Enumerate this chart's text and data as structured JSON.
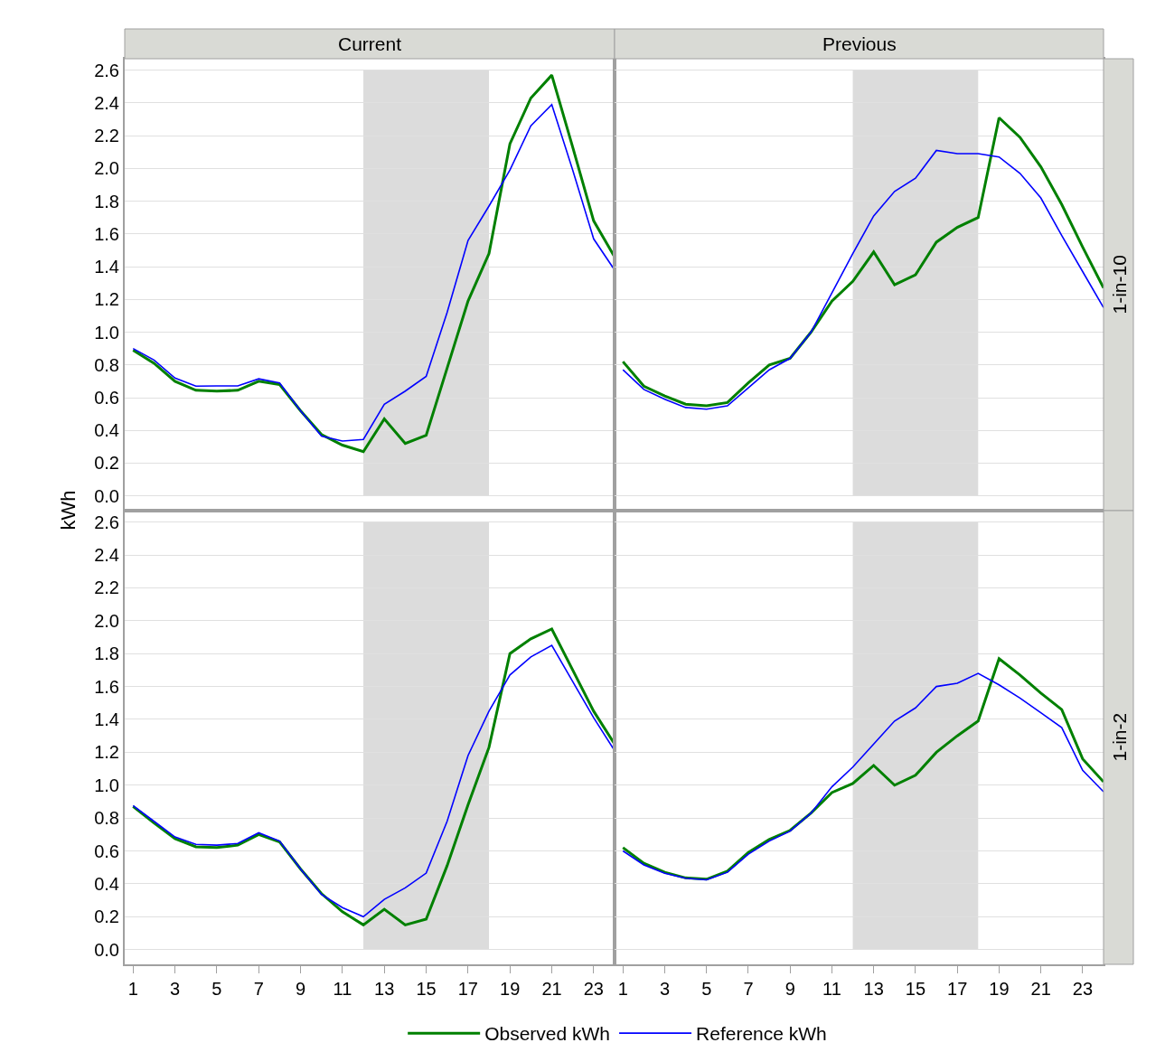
{
  "chart_data": [
    {
      "type": "line",
      "title": "Current",
      "ylabel": "kWh",
      "legend": "bottom",
      "grid": "y",
      "tick_labels": "y",
      "x": [
        1,
        2,
        3,
        4,
        5,
        6,
        7,
        8,
        9,
        10,
        11,
        12,
        13,
        14,
        15,
        16,
        17,
        18,
        19,
        20,
        21,
        22,
        23,
        24
      ],
      "xlim": [
        0.6,
        24
      ],
      "xticks": [
        1,
        3,
        5,
        7,
        9,
        11,
        13,
        15,
        17,
        19,
        21,
        23
      ],
      "ylim": [
        -0.09,
        2.67
      ],
      "yticks": [
        {
          "value": 0,
          "label": "0.0"
        },
        0.2,
        0.4,
        0.6,
        0.8,
        {
          "value": 1,
          "label": "1.0"
        },
        1.2,
        1.4,
        1.6,
        1.8,
        {
          "value": 2,
          "label": "2.0"
        },
        2.2,
        2.4,
        2.6
      ],
      "bands": [
        {
          "axis": "x",
          "from": 12,
          "to": 18,
          "color": "#dcdcdc"
        }
      ],
      "series": [
        {
          "name": "Observed kWh",
          "color": "#008000",
          "values": [
            0.89,
            0.81,
            0.7,
            0.645,
            0.64,
            0.645,
            0.7,
            0.68,
            0.52,
            0.375,
            0.31,
            0.27,
            0.47,
            0.32,
            0.37,
            0.78,
            1.19,
            1.48,
            2.15,
            2.43,
            2.57,
            2.13,
            1.68,
            1.46
          ]
        },
        {
          "name": "Reference kWh",
          "color": "#0000ff",
          "values": [
            0.9,
            0.83,
            0.72,
            0.67,
            0.672,
            0.672,
            0.715,
            0.69,
            0.52,
            0.365,
            0.335,
            0.345,
            0.56,
            0.64,
            0.73,
            1.12,
            1.56,
            1.77,
            1.99,
            2.26,
            2.39,
            1.99,
            1.57,
            1.38
          ]
        }
      ]
    },
    {
      "type": "line",
      "title": "Previous",
      "annotations": [
        "1-in-10"
      ],
      "grid": "y",
      "tick_labels": false,
      "x": [
        1,
        2,
        3,
        4,
        5,
        6,
        7,
        8,
        9,
        10,
        11,
        12,
        13,
        14,
        15,
        16,
        17,
        18,
        19,
        20,
        21,
        22,
        23,
        24
      ],
      "xlim": [
        0.6,
        24
      ],
      "xticks": [
        1,
        3,
        5,
        7,
        9,
        11,
        13,
        15,
        17,
        19,
        21,
        23
      ],
      "ylim": [
        -0.09,
        2.67
      ],
      "yticks": [
        0,
        0.2,
        0.4,
        0.6,
        0.8,
        1,
        1.2,
        1.4,
        1.6,
        1.8,
        2,
        2.2,
        2.4,
        2.6
      ],
      "bands": [
        {
          "axis": "x",
          "from": 12,
          "to": 18,
          "color": "#dcdcdc"
        }
      ],
      "series": [
        {
          "color": "#008000",
          "values": [
            0.82,
            0.67,
            0.61,
            0.56,
            0.55,
            0.57,
            0.69,
            0.8,
            0.84,
            1.0,
            1.19,
            1.31,
            1.49,
            1.29,
            1.35,
            1.55,
            1.64,
            1.7,
            2.31,
            2.19,
            2.01,
            1.78,
            1.52,
            1.27
          ]
        },
        {
          "color": "#0000ff",
          "values": [
            0.77,
            0.65,
            0.59,
            0.54,
            0.53,
            0.55,
            0.66,
            0.77,
            0.84,
            1.0,
            1.24,
            1.48,
            1.71,
            1.86,
            1.94,
            2.11,
            2.09,
            2.09,
            2.07,
            1.97,
            1.82,
            1.59,
            1.37,
            1.15
          ]
        }
      ]
    },
    {
      "type": "line",
      "grid": "y",
      "x": [
        1,
        2,
        3,
        4,
        5,
        6,
        7,
        8,
        9,
        10,
        11,
        12,
        13,
        14,
        15,
        16,
        17,
        18,
        19,
        20,
        21,
        22,
        23,
        24
      ],
      "xlim": [
        0.6,
        24
      ],
      "xticks": [
        1,
        3,
        5,
        7,
        9,
        11,
        13,
        15,
        17,
        19,
        21,
        23
      ],
      "ylim": [
        -0.09,
        2.67
      ],
      "yticks": [
        {
          "value": 0,
          "label": "0.0"
        },
        0.2,
        0.4,
        0.6,
        0.8,
        {
          "value": 1,
          "label": "1.0"
        },
        1.2,
        1.4,
        1.6,
        1.8,
        {
          "value": 2,
          "label": "2.0"
        },
        2.2,
        2.4,
        2.6
      ],
      "bands": [
        {
          "axis": "x",
          "from": 12,
          "to": 18,
          "color": "#dcdcdc"
        }
      ],
      "series": [
        {
          "color": "#008000",
          "values": [
            0.87,
            0.77,
            0.675,
            0.625,
            0.62,
            0.635,
            0.7,
            0.655,
            0.49,
            0.34,
            0.23,
            0.15,
            0.245,
            0.15,
            0.185,
            0.51,
            0.88,
            1.23,
            1.8,
            1.89,
            1.95,
            1.7,
            1.45,
            1.25
          ]
        },
        {
          "color": "#0000ff",
          "values": [
            0.875,
            0.78,
            0.685,
            0.64,
            0.635,
            0.645,
            0.71,
            0.66,
            0.49,
            0.335,
            0.255,
            0.2,
            0.305,
            0.375,
            0.465,
            0.78,
            1.18,
            1.45,
            1.67,
            1.78,
            1.85,
            1.63,
            1.41,
            1.21
          ]
        }
      ]
    },
    {
      "type": "line",
      "annotations": [
        "1-in-2"
      ],
      "grid": "y",
      "tick_labels": "x",
      "x": [
        1,
        2,
        3,
        4,
        5,
        6,
        7,
        8,
        9,
        10,
        11,
        12,
        13,
        14,
        15,
        16,
        17,
        18,
        19,
        20,
        21,
        22,
        23,
        24
      ],
      "xlim": [
        0.6,
        24
      ],
      "xticks": [
        1,
        3,
        5,
        7,
        9,
        11,
        13,
        15,
        17,
        19,
        21,
        23
      ],
      "ylim": [
        -0.09,
        2.67
      ],
      "yticks": [
        0,
        0.2,
        0.4,
        0.6,
        0.8,
        1,
        1.2,
        1.4,
        1.6,
        1.8,
        2,
        2.2,
        2.4,
        2.6
      ],
      "bands": [
        {
          "axis": "x",
          "from": 12,
          "to": 18,
          "color": "#dcdcdc"
        }
      ],
      "series": [
        {
          "color": "#008000",
          "values": [
            0.62,
            0.525,
            0.47,
            0.436,
            0.428,
            0.477,
            0.59,
            0.67,
            0.725,
            0.83,
            0.955,
            1.01,
            1.12,
            1.0,
            1.06,
            1.2,
            1.3,
            1.39,
            1.77,
            1.67,
            1.56,
            1.46,
            1.16,
            1.02
          ]
        },
        {
          "color": "#0000ff",
          "values": [
            0.6,
            0.515,
            0.464,
            0.434,
            0.424,
            0.47,
            0.58,
            0.66,
            0.72,
            0.83,
            0.99,
            1.11,
            1.25,
            1.39,
            1.47,
            1.6,
            1.62,
            1.68,
            1.61,
            1.53,
            1.44,
            1.35,
            1.09,
            0.96
          ]
        }
      ]
    }
  ]
}
